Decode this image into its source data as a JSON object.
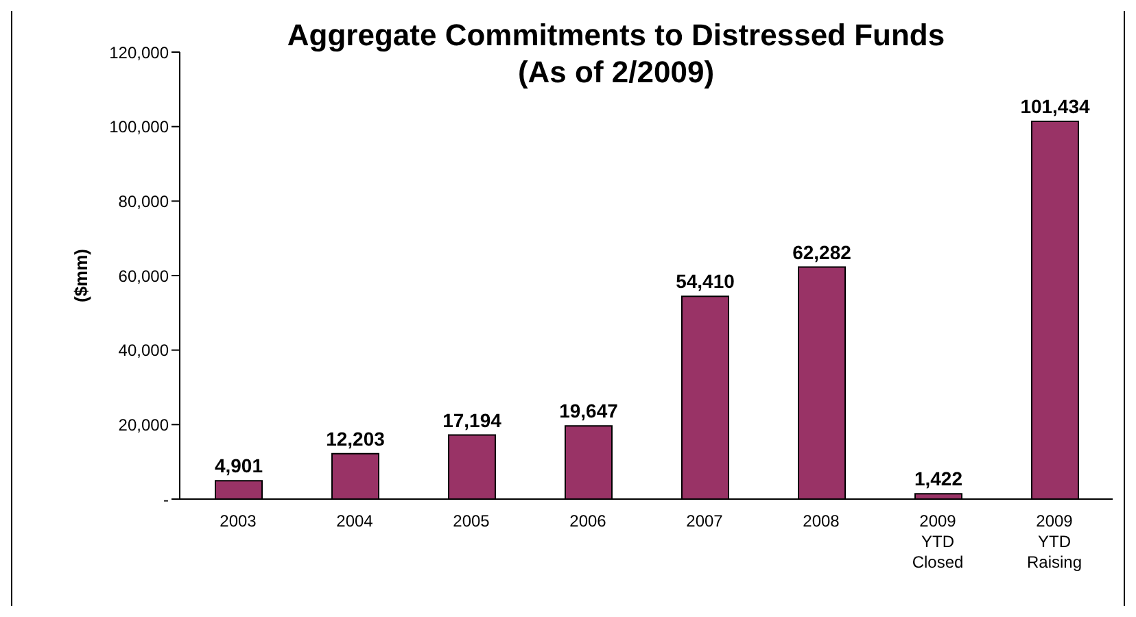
{
  "chart_data": {
    "type": "bar",
    "title": "Aggregate Commitments to Distressed Funds\n(As of 2/2009)",
    "ylabel": "($mm)",
    "categories": [
      "2003",
      "2004",
      "2005",
      "2006",
      "2007",
      "2008",
      "2009\nYTD\nClosed",
      "2009\nYTD\nRaising"
    ],
    "values": [
      4901,
      12203,
      17194,
      19647,
      54410,
      62282,
      1422,
      101434
    ],
    "color": "#993366",
    "ylim": [
      0,
      120000
    ],
    "yticks": [
      {
        "value": 0,
        "label": "-"
      },
      {
        "value": 20000,
        "label": "20,000"
      },
      {
        "value": 40000,
        "label": "40,000"
      },
      {
        "value": 60000,
        "label": "60,000"
      },
      {
        "value": 80000,
        "label": "80,000"
      },
      {
        "value": 100000,
        "label": "100,000"
      },
      {
        "value": 120000,
        "label": "120,000"
      }
    ],
    "value_labels": [
      "4,901",
      "12,203",
      "17,194",
      "19,647",
      "54,410",
      "62,282",
      "1,422",
      "101,434"
    ],
    "grid": false,
    "legend": false
  }
}
